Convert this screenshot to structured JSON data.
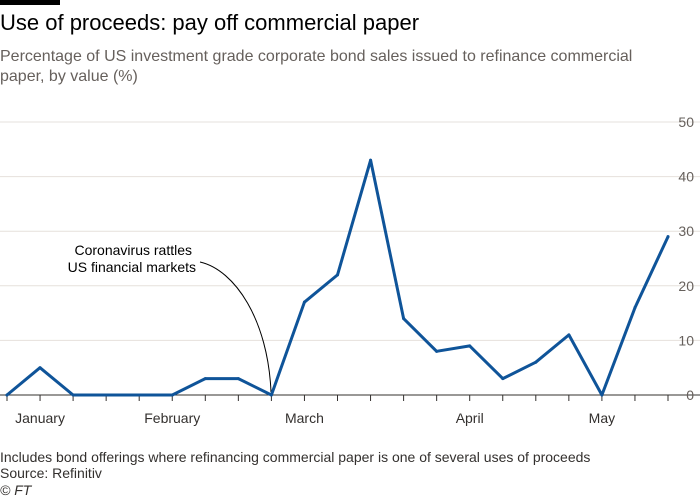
{
  "title": "Use of proceeds: pay off commercial paper",
  "subtitle": "Percentage of US investment grade corporate bond sales issued to refinance commercial paper, by value (%)",
  "note": "Includes bond offerings where refinancing commercial paper is one of several uses of proceeds",
  "source": "Source: Refinitiv",
  "copyright": "© FT",
  "colors": {
    "line": "#0f5499",
    "grid": "#e6e1dc",
    "axis": "#33302e",
    "annotation": "#000000"
  },
  "chart_data": {
    "type": "line",
    "title": "Use of proceeds: pay off commercial paper",
    "ylim": [
      0,
      50
    ],
    "yticks": [
      0,
      10,
      20,
      30,
      40,
      50
    ],
    "grid": true,
    "y_axis_side": "right",
    "x_month_labels": [
      "January",
      "February",
      "March",
      "April",
      "May"
    ],
    "series": [
      {
        "values": [
          0,
          5,
          0,
          0,
          0,
          0,
          3,
          3,
          0,
          17,
          22,
          43,
          14,
          8,
          9,
          3,
          6,
          11,
          0,
          16,
          29
        ]
      }
    ],
    "annotation": {
      "lines": [
        "Coronavirus rattles",
        "US financial markets"
      ]
    }
  }
}
